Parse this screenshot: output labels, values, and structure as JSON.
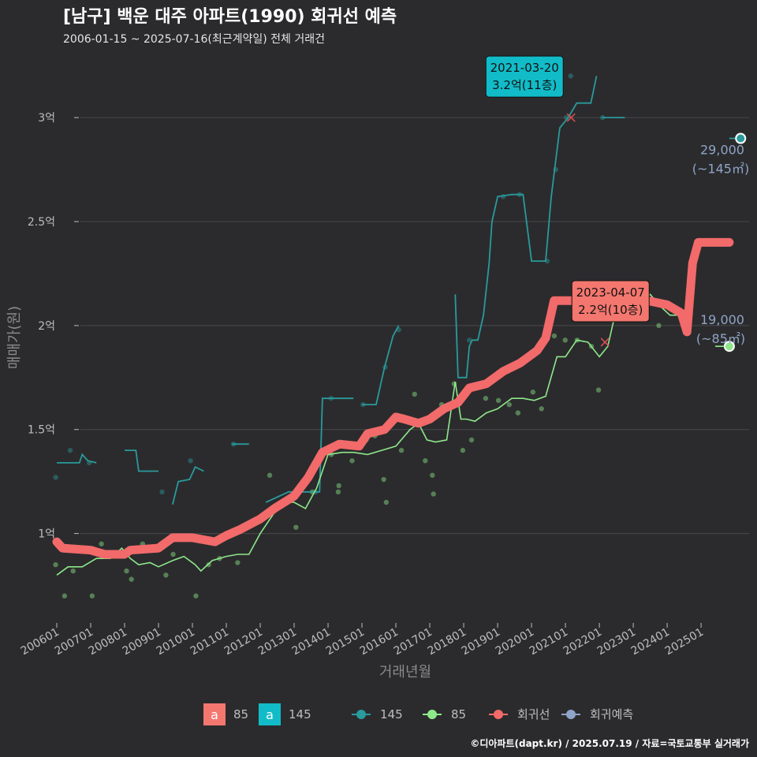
{
  "header": {
    "title": "[남구] 백운 대주 아파트(1990) 회귀선 예측",
    "subtitle": "2006-01-15 ~ 2025-07-16(최근계약일) 전체 거래건"
  },
  "caption": "©디아파트(dapt.kr) / 2025.07.19 / 자료=국토교통부 실거래가",
  "colors": {
    "background": "#2b2b2d",
    "grid": "#4a4a4c",
    "s145": "#2a9a9c",
    "s85": "#8ee88a",
    "regression": "#f26a6a",
    "prediction": "#8fa4c7",
    "ann145": "#11bcc8",
    "ann85": "#f4776f"
  },
  "chart_data": {
    "type": "line",
    "xlabel": "거래년월",
    "ylabel": "매매가(원)",
    "x_range": [
      "2006-01",
      "2026-06"
    ],
    "ylim": [
      0.57,
      3.3
    ],
    "y_unit": "억",
    "y_ticks": [
      {
        "value": 1.0,
        "label": "1억"
      },
      {
        "value": 1.5,
        "label": "1.5억"
      },
      {
        "value": 2.0,
        "label": "2억"
      },
      {
        "value": 2.5,
        "label": "2.5억"
      },
      {
        "value": 3.0,
        "label": "3억"
      }
    ],
    "x_ticks": [
      "200601",
      "200701",
      "200801",
      "200901",
      "201001",
      "201101",
      "201201",
      "201301",
      "201401",
      "201501",
      "201601",
      "201701",
      "201801",
      "201901",
      "202001",
      "202101",
      "202201",
      "202301",
      "202401",
      "202501"
    ],
    "grid": true,
    "legend_position": "bottom",
    "legend": {
      "text_keys": [
        {
          "key": "a",
          "label": "85",
          "color": "#f4776f"
        },
        {
          "key": "a",
          "label": "145",
          "color": "#11bcc8"
        }
      ],
      "lines": [
        {
          "label": "145",
          "color": "#2a9a9c"
        },
        {
          "label": "85",
          "color": "#8ee88a"
        },
        {
          "label": "회귀선",
          "color": "#f26a6a"
        },
        {
          "label": "회귀예측",
          "color": "#8fa4c7"
        }
      ]
    },
    "series": [
      {
        "name": "145",
        "color": "#2a9a9c",
        "segments": [
          [
            [
              "2006-01",
              1.34
            ],
            [
              "2006-09",
              1.34
            ],
            [
              "2006-10",
              1.38
            ],
            [
              "2006-12",
              1.35
            ],
            [
              "2007-03",
              1.34
            ]
          ],
          [
            [
              "2008-01",
              1.4
            ],
            [
              "2008-05",
              1.4
            ],
            [
              "2008-06",
              1.3
            ],
            [
              "2009-01",
              1.3
            ]
          ],
          [
            [
              "2009-06",
              1.14
            ],
            [
              "2009-08",
              1.25
            ],
            [
              "2009-12",
              1.26
            ],
            [
              "2010-02",
              1.32
            ],
            [
              "2010-05",
              1.3
            ]
          ],
          [
            [
              "2011-03",
              1.43
            ],
            [
              "2011-09",
              1.43
            ]
          ],
          [
            [
              "2012-03",
              1.15
            ],
            [
              "2012-11",
              1.2
            ],
            [
              "2013-10",
              1.2
            ],
            [
              "2013-11",
              1.65
            ],
            [
              "2014-10",
              1.65
            ]
          ],
          [
            [
              "2015-01",
              1.62
            ],
            [
              "2015-06",
              1.62
            ],
            [
              "2015-09",
              1.8
            ],
            [
              "2015-12",
              1.95
            ],
            [
              "2016-02",
              2.0
            ]
          ],
          [
            [
              "2017-10",
              2.15
            ],
            [
              "2017-11",
              1.75
            ],
            [
              "2018-02",
              1.75
            ],
            [
              "2018-03",
              1.9
            ],
            [
              "2018-04",
              1.93
            ],
            [
              "2018-06",
              1.93
            ],
            [
              "2018-08",
              2.05
            ],
            [
              "2018-10",
              2.3
            ],
            [
              "2018-11",
              2.5
            ],
            [
              "2019-01",
              2.62
            ],
            [
              "2019-06",
              2.63
            ],
            [
              "2019-10",
              2.63
            ],
            [
              "2020-01",
              2.31
            ],
            [
              "2020-06",
              2.31
            ],
            [
              "2020-08",
              2.62
            ],
            [
              "2020-11",
              2.95
            ],
            [
              "2021-02",
              3.0
            ],
            [
              "2021-05",
              3.07
            ],
            [
              "2021-10",
              3.07
            ],
            [
              "2021-12",
              3.2
            ]
          ],
          [
            [
              "2022-02",
              3.0
            ],
            [
              "2022-10",
              3.0
            ]
          ],
          [
            [
              "2025-11",
              2.9
            ],
            [
              "2026-03",
              2.9
            ]
          ]
        ]
      },
      {
        "name": "85",
        "color": "#8ee88a",
        "points": [
          [
            "2006-01",
            0.8
          ],
          [
            "2006-05",
            0.84
          ],
          [
            "2006-10",
            0.84
          ],
          [
            "2007-03",
            0.88
          ],
          [
            "2007-08",
            0.88
          ],
          [
            "2007-12",
            0.93
          ],
          [
            "2008-03",
            0.88
          ],
          [
            "2008-06",
            0.85
          ],
          [
            "2008-10",
            0.86
          ],
          [
            "2009-01",
            0.84
          ],
          [
            "2009-06",
            0.87
          ],
          [
            "2009-10",
            0.89
          ],
          [
            "2010-02",
            0.85
          ],
          [
            "2010-04",
            0.82
          ],
          [
            "2010-08",
            0.87
          ],
          [
            "2011-01",
            0.89
          ],
          [
            "2011-05",
            0.9
          ],
          [
            "2011-09",
            0.9
          ],
          [
            "2012-01",
            1.0
          ],
          [
            "2012-06",
            1.1
          ],
          [
            "2012-10",
            1.15
          ],
          [
            "2013-01",
            1.15
          ],
          [
            "2013-05",
            1.12
          ],
          [
            "2013-09",
            1.22
          ],
          [
            "2014-01",
            1.38
          ],
          [
            "2014-06",
            1.39
          ],
          [
            "2014-10",
            1.39
          ],
          [
            "2015-03",
            1.38
          ],
          [
            "2015-08",
            1.4
          ],
          [
            "2016-01",
            1.42
          ],
          [
            "2016-06",
            1.5
          ],
          [
            "2016-09",
            1.53
          ],
          [
            "2016-12",
            1.45
          ],
          [
            "2017-03",
            1.44
          ],
          [
            "2017-07",
            1.45
          ],
          [
            "2017-10",
            1.73
          ],
          [
            "2017-12",
            1.55
          ],
          [
            "2018-02",
            1.55
          ],
          [
            "2018-05",
            1.54
          ],
          [
            "2018-09",
            1.58
          ],
          [
            "2019-01",
            1.6
          ],
          [
            "2019-06",
            1.65
          ],
          [
            "2019-10",
            1.65
          ],
          [
            "2020-02",
            1.64
          ],
          [
            "2020-06",
            1.66
          ],
          [
            "2020-10",
            1.85
          ],
          [
            "2021-01",
            1.85
          ],
          [
            "2021-05",
            1.93
          ],
          [
            "2021-09",
            1.92
          ],
          [
            "2022-01",
            1.85
          ],
          [
            "2022-04",
            1.9
          ],
          [
            "2022-07",
            2.08
          ],
          [
            "2022-11",
            2.08
          ],
          [
            "2023-03",
            2.1
          ],
          [
            "2023-07",
            2.15
          ],
          [
            "2023-10",
            2.1
          ],
          [
            "2024-02",
            2.05
          ],
          [
            "2024-06",
            2.05
          ],
          [
            "2024-10",
            2.05
          ]
        ],
        "prediction_tail": [
          [
            "2025-06",
            1.9
          ],
          [
            "2025-11",
            1.9
          ]
        ]
      },
      {
        "name": "회귀선",
        "color": "#f26a6a",
        "points": [
          [
            "2006-01",
            0.96
          ],
          [
            "2006-03",
            0.93
          ],
          [
            "2007-01",
            0.92
          ],
          [
            "2007-06",
            0.9
          ],
          [
            "2008-01",
            0.9
          ],
          [
            "2008-03",
            0.92
          ],
          [
            "2009-01",
            0.93
          ],
          [
            "2009-06",
            0.98
          ],
          [
            "2010-01",
            0.98
          ],
          [
            "2010-09",
            0.96
          ],
          [
            "2011-01",
            0.99
          ],
          [
            "2011-06",
            1.02
          ],
          [
            "2012-01",
            1.07
          ],
          [
            "2012-06",
            1.12
          ],
          [
            "2013-01",
            1.18
          ],
          [
            "2013-06",
            1.27
          ],
          [
            "2013-11",
            1.39
          ],
          [
            "2014-05",
            1.43
          ],
          [
            "2014-12",
            1.42
          ],
          [
            "2015-03",
            1.48
          ],
          [
            "2015-09",
            1.5
          ],
          [
            "2016-01",
            1.56
          ],
          [
            "2016-04",
            1.55
          ],
          [
            "2016-09",
            1.53
          ],
          [
            "2017-01",
            1.55
          ],
          [
            "2017-06",
            1.6
          ],
          [
            "2017-11",
            1.63
          ],
          [
            "2018-03",
            1.7
          ],
          [
            "2018-09",
            1.72
          ],
          [
            "2019-03",
            1.78
          ],
          [
            "2019-09",
            1.82
          ],
          [
            "2020-03",
            1.88
          ],
          [
            "2020-06",
            1.94
          ],
          [
            "2020-09",
            2.12
          ],
          [
            "2021-01",
            2.12
          ],
          [
            "2021-06",
            2.12
          ],
          [
            "2022-01",
            2.1
          ],
          [
            "2022-06",
            2.08
          ],
          [
            "2022-09",
            2.12
          ],
          [
            "2023-01",
            2.14
          ],
          [
            "2023-06",
            2.12
          ],
          [
            "2024-01",
            2.1
          ],
          [
            "2024-06",
            2.06
          ],
          [
            "2024-08",
            1.97
          ],
          [
            "2024-10",
            2.3
          ],
          [
            "2024-12",
            2.4
          ],
          [
            "2025-11",
            2.4
          ]
        ]
      }
    ],
    "scatter_points": [
      {
        "series": "145",
        "points": [
          [
            "2006-01",
            1.27
          ],
          [
            "2006-06",
            1.4
          ],
          [
            "2007-01",
            1.34
          ],
          [
            "2009-02",
            1.2
          ],
          [
            "2010-01",
            1.35
          ],
          [
            "2011-03",
            1.43
          ],
          [
            "2013-09",
            1.2
          ],
          [
            "2014-02",
            1.65
          ],
          [
            "2015-01",
            1.62
          ],
          [
            "2015-10",
            1.8
          ],
          [
            "2016-02",
            1.98
          ],
          [
            "2018-03",
            1.93
          ],
          [
            "2019-03",
            2.62
          ],
          [
            "2019-09",
            2.63
          ],
          [
            "2020-06",
            2.31
          ],
          [
            "2020-09",
            2.75
          ],
          [
            "2021-02",
            3.0
          ],
          [
            "2021-03",
            3.2
          ],
          [
            "2022-02",
            3.0
          ]
        ]
      },
      {
        "series": "85",
        "points": [
          [
            "2006-01",
            0.85
          ],
          [
            "2006-03",
            0.7
          ],
          [
            "2006-06",
            0.82
          ],
          [
            "2007-02",
            0.7
          ],
          [
            "2007-05",
            0.95
          ],
          [
            "2008-02",
            0.82
          ],
          [
            "2008-04",
            0.78
          ],
          [
            "2008-07",
            0.95
          ],
          [
            "2009-03",
            0.8
          ],
          [
            "2009-07",
            0.9
          ],
          [
            "2010-03",
            0.7
          ],
          [
            "2010-06",
            0.85
          ],
          [
            "2010-11",
            0.88
          ],
          [
            "2011-05",
            0.86
          ],
          [
            "2012-02",
            1.08
          ],
          [
            "2012-05",
            1.28
          ],
          [
            "2012-09",
            1.13
          ],
          [
            "2013-02",
            1.03
          ],
          [
            "2013-08",
            1.2
          ],
          [
            "2014-02",
            1.38
          ],
          [
            "2014-04",
            1.2
          ],
          [
            "2014-05",
            1.23
          ],
          [
            "2014-09",
            1.35
          ],
          [
            "2015-02",
            1.45
          ],
          [
            "2015-05",
            1.47
          ],
          [
            "2015-08",
            1.26
          ],
          [
            "2015-10",
            1.15
          ],
          [
            "2016-03",
            1.4
          ],
          [
            "2016-07",
            1.67
          ],
          [
            "2016-11",
            1.35
          ],
          [
            "2017-02",
            1.28
          ],
          [
            "2017-03",
            1.19
          ],
          [
            "2017-05",
            1.62
          ],
          [
            "2017-09",
            1.72
          ],
          [
            "2018-01",
            1.4
          ],
          [
            "2018-04",
            1.45
          ],
          [
            "2018-08",
            1.65
          ],
          [
            "2019-01",
            1.64
          ],
          [
            "2019-05",
            1.62
          ],
          [
            "2019-08",
            1.58
          ],
          [
            "2020-01",
            1.68
          ],
          [
            "2020-05",
            1.6
          ],
          [
            "2020-09",
            1.95
          ],
          [
            "2021-01",
            1.93
          ],
          [
            "2021-05",
            1.93
          ],
          [
            "2021-10",
            1.9
          ],
          [
            "2022-01",
            1.69
          ],
          [
            "2022-05",
            2.08
          ],
          [
            "2022-09",
            2.05
          ],
          [
            "2023-03",
            2.2
          ],
          [
            "2023-06",
            2.12
          ],
          [
            "2023-10",
            2.0
          ]
        ]
      }
    ],
    "annotations": [
      {
        "date_label": "2021-03-20",
        "value_label": "3.2억(11층)",
        "series": "145",
        "x": "2021-03",
        "y": 3.0
      },
      {
        "date_label": "2023-04-07",
        "value_label": "2.2억(10층)",
        "series": "85",
        "x": "2022-03",
        "y": 1.92
      }
    ],
    "predictions": [
      {
        "series": "145",
        "x": "2026-03",
        "y": 2.9,
        "value_label": "29,000",
        "area_label": "(~145㎡)"
      },
      {
        "series": "85",
        "x": "2025-11",
        "y": 1.9,
        "value_label": "19,000",
        "area_label": "(~85㎡)"
      }
    ]
  }
}
